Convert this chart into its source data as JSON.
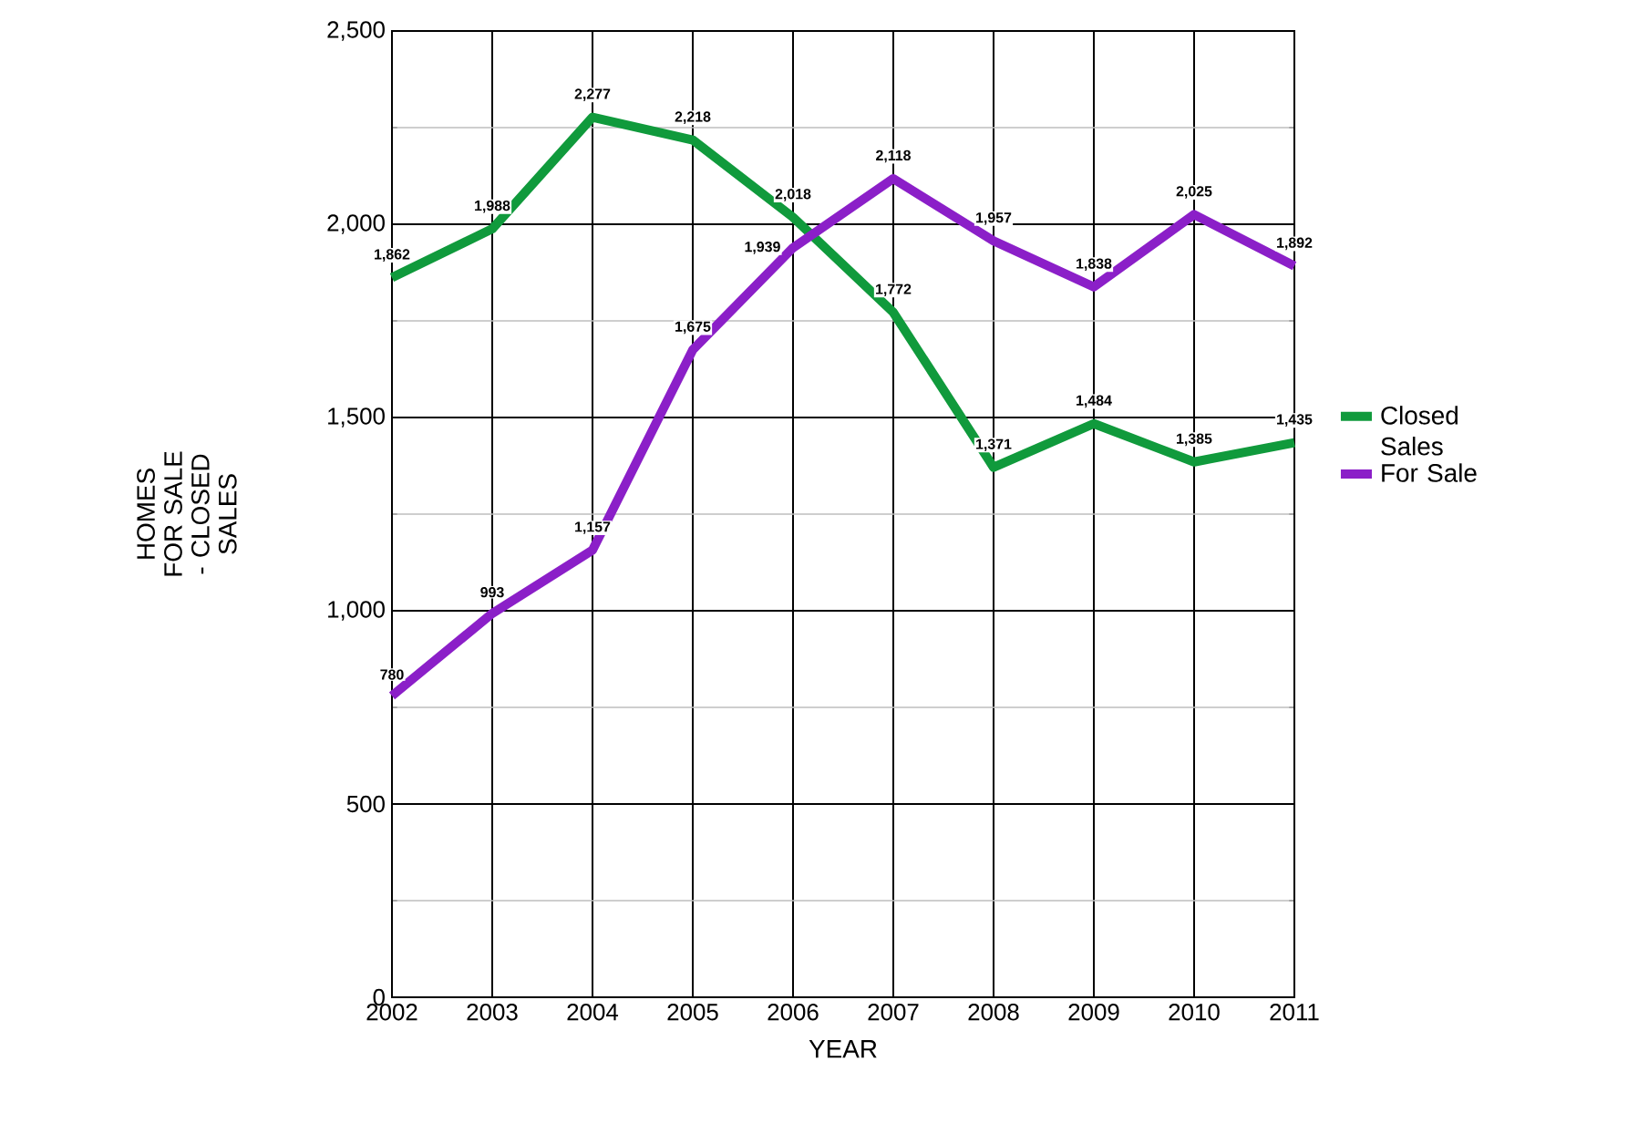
{
  "chart_data": {
    "type": "line",
    "xlabel": "YEAR",
    "ylabel": "HOMES FOR SALE - CLOSED SALES",
    "categories": [
      "2002",
      "2003",
      "2004",
      "2005",
      "2006",
      "2007",
      "2008",
      "2009",
      "2010",
      "2011"
    ],
    "series": [
      {
        "name": "Closed Sales",
        "color": "#109a3c",
        "values": [
          1862,
          1988,
          2277,
          2218,
          2018,
          1772,
          1371,
          1484,
          1385,
          1435
        ],
        "value_labels": [
          "1,862",
          "1,988",
          "2,277",
          "2,218",
          "2,018",
          "1,772",
          "1,371",
          "1,484",
          "1,385",
          "1,435"
        ]
      },
      {
        "name": "For Sale",
        "color": "#8b1fc8",
        "values": [
          780,
          993,
          1157,
          1675,
          1939,
          2118,
          1957,
          1838,
          2025,
          1892
        ],
        "value_labels": [
          "780",
          "993",
          "1,157",
          "1,675",
          "1,939",
          "2,118",
          "1,957",
          "1,838",
          "2,025",
          "1,892"
        ]
      }
    ],
    "ylim": [
      0,
      2500
    ],
    "yticks": [
      0,
      500,
      {
        "value": 1000,
        "label": "1,000"
      },
      {
        "value": 1500,
        "label": "1,500"
      },
      {
        "value": 2000,
        "label": "2,000"
      },
      {
        "value": 2500,
        "label": "2,500"
      }
    ],
    "grid": true,
    "legend": "right",
    "marker": "none",
    "line_style": "solid"
  }
}
